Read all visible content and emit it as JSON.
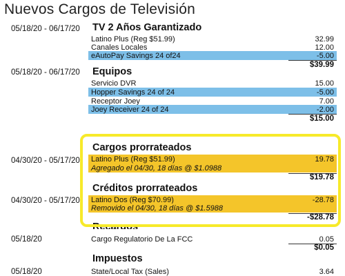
{
  "page_title": "Nuevos Cargos de Televisión",
  "sections": {
    "tv": {
      "date": "05/18/20 - 06/17/20",
      "heading": "TV 2 Años Garantizado",
      "items": [
        {
          "label": "Latino Plus (Reg $51.99)",
          "amount": "32.99"
        },
        {
          "label": "Canales Locales",
          "amount": "12.00"
        },
        {
          "label": "eAutoPay Savings 24 of24",
          "amount": "-5.00"
        }
      ],
      "total": "$39.99"
    },
    "equipos": {
      "date": "05/18/20 - 06/17/20",
      "heading": "Equipos",
      "items": [
        {
          "label": "Servicio DVR",
          "amount": "15.00"
        },
        {
          "label": "Hopper Savings 24 of 24",
          "amount": "-5.00"
        },
        {
          "label": "Receptor Joey",
          "amount": "7.00"
        },
        {
          "label": "Joey Receiver 24 of 24",
          "amount": "-2.00"
        }
      ],
      "total": "$15.00"
    },
    "prorrateados": {
      "date": "04/30/20 - 05/17/20",
      "heading": "Cargos prorrateados",
      "items": [
        {
          "label": "Latino Plus (Reg $51.99)",
          "amount": "19.78"
        },
        {
          "label": "Agregado el 04/30, 18 días @ $1.0988",
          "amount": ""
        }
      ],
      "total": "$19.78"
    },
    "creditos": {
      "date": "04/30/20 - 05/17/20",
      "heading": "Créditos prorrateados",
      "items": [
        {
          "label": "Latino Dos (Reg $70.99)",
          "amount": "-28.78"
        },
        {
          "label": "Removido el 04/30, 18 días @ $1.5988",
          "amount": ""
        }
      ],
      "total": "-$28.78"
    },
    "recargos": {
      "date": "05/18/20",
      "heading": "Recargos",
      "items": [
        {
          "label": "Cargo Regulatorio De La FCC",
          "amount": "0.05"
        }
      ],
      "total": "$0.05"
    },
    "impuestos": {
      "date": "05/18/20",
      "heading": "Impuestos",
      "items": [
        {
          "label": "State/Local Tax (Sales)",
          "amount": "3.64"
        }
      ]
    }
  },
  "colors": {
    "savings_highlight": "#7dbfe8",
    "proration_highlight": "#f4c52a",
    "callout_border": "#f7ea2a"
  }
}
